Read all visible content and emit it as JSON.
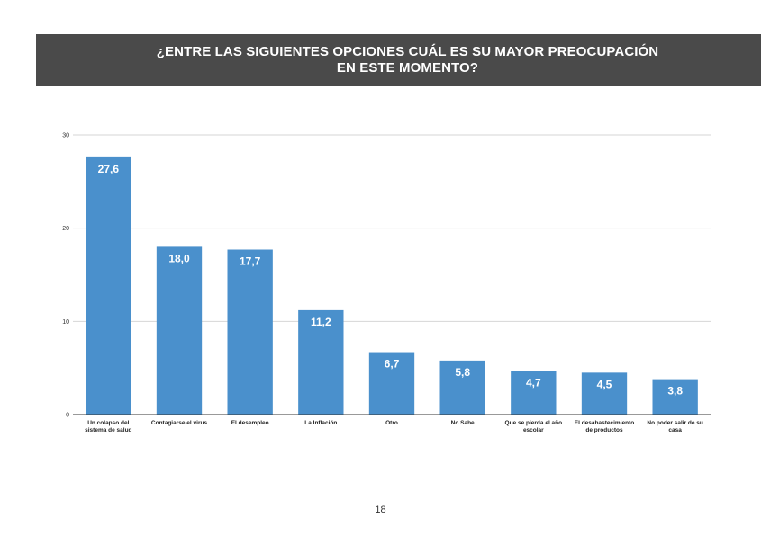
{
  "header": {
    "title_line1": "¿ENTRE LAS SIGUIENTES OPCIONES CUÁL ES SU MAYOR PREOCUPACIÓN",
    "title_line2": "EN ESTE MOMENTO?"
  },
  "page_number": "18",
  "chart_data": {
    "type": "bar",
    "title": "¿ENTRE LAS SIGUIENTES OPCIONES CUÁL ES SU MAYOR PREOCUPACIÓN EN ESTE MOMENTO?",
    "categories": [
      [
        "Un colapso del",
        "sistema de salud"
      ],
      [
        "Contagiarse el virus"
      ],
      [
        "El desempleo"
      ],
      [
        "La Inflación"
      ],
      [
        "Otro"
      ],
      [
        "No Sabe"
      ],
      [
        "Que se pierda el año",
        "escolar"
      ],
      [
        "El desabastecimiento",
        "de productos"
      ],
      [
        "No poder salir de su",
        "casa"
      ]
    ],
    "values": [
      27.6,
      18.0,
      17.7,
      11.2,
      6.7,
      5.8,
      4.7,
      4.5,
      3.8
    ],
    "value_labels": [
      "27,6",
      "18,0",
      "17,7",
      "11,2",
      "6,7",
      "5,8",
      "4,7",
      "4,5",
      "3,8"
    ],
    "ylim": [
      0,
      30
    ],
    "yticks": [
      0,
      10,
      20,
      30
    ],
    "ytick_labels": [
      "0",
      "10",
      "20",
      "30"
    ],
    "grid": true,
    "xlabel": "",
    "ylabel": "",
    "bar_color": "#4a90cc",
    "grid_color": "#d6d6d6",
    "axis_color": "#333333"
  }
}
